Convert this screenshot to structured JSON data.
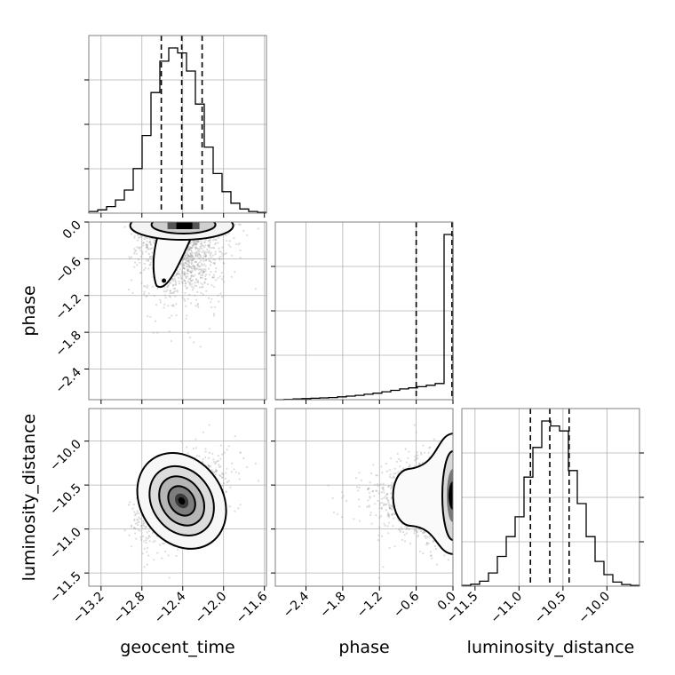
{
  "chart_data": {
    "type": "corner",
    "parameters": [
      "geocent_time",
      "phase",
      "luminosity_distance"
    ],
    "grid": true,
    "ranges": {
      "geocent_time": [
        -13.32,
        -11.58
      ],
      "phase": [
        -2.9,
        0.0
      ],
      "luminosity_distance": [
        -11.65,
        -9.63
      ]
    },
    "ticks": {
      "geocent_time": [
        "-13.2",
        "-12.8",
        "-12.4",
        "-12.0",
        "-11.6"
      ],
      "phase": [
        "-2.4",
        "-1.8",
        "-1.2",
        "-0.6",
        "0.0"
      ],
      "luminosity_distance": [
        "-11.5",
        "-11.0",
        "-10.5",
        "-10.0"
      ]
    },
    "y_ticks": {
      "phase": [
        "0.0",
        "-0.6",
        "-1.2",
        "-1.8",
        "-2.4"
      ],
      "luminosity_distance": [
        "-10.0",
        "-10.5",
        "-11.0",
        "-11.5"
      ]
    },
    "quantiles": {
      "geocent_time": [
        -12.61,
        -12.41,
        -12.21
      ],
      "phase": [
        -0.6,
        0.0,
        0.0
      ],
      "luminosity_distance": [
        -10.87,
        -10.65,
        -10.43
      ]
    },
    "histograms": {
      "geocent_time": {
        "bin_edges": [
          -13.32,
          -13.233,
          -13.146,
          -13.059,
          -12.972,
          -12.885,
          -12.798,
          -12.711,
          -12.624,
          -12.537,
          -12.45,
          -12.363,
          -12.276,
          -12.189,
          -12.102,
          -12.015,
          -11.928,
          -11.841,
          -11.754,
          -11.667,
          -11.58
        ],
        "heights": [
          0.01,
          0.02,
          0.04,
          0.08,
          0.14,
          0.27,
          0.47,
          0.73,
          0.92,
          1.0,
          0.97,
          0.86,
          0.66,
          0.4,
          0.24,
          0.13,
          0.06,
          0.025,
          0.01,
          0.005
        ]
      },
      "phase": {
        "bin_edges": [
          -2.9,
          -2.755,
          -2.61,
          -2.465,
          -2.32,
          -2.175,
          -2.03,
          -1.885,
          -1.74,
          -1.595,
          -1.45,
          -1.305,
          -1.16,
          -1.015,
          -0.87,
          -0.725,
          -0.58,
          -0.435,
          -0.29,
          -0.145,
          0.0
        ],
        "heights": [
          0.0,
          0.002,
          0.004,
          0.006,
          0.008,
          0.01,
          0.012,
          0.016,
          0.02,
          0.024,
          0.03,
          0.036,
          0.044,
          0.052,
          0.06,
          0.066,
          0.072,
          0.08,
          0.09,
          0.92
        ]
      },
      "luminosity_distance": {
        "bin_edges": [
          -11.65,
          -11.549,
          -11.448,
          -11.347,
          -11.246,
          -11.145,
          -11.044,
          -10.943,
          -10.842,
          -10.741,
          -10.64,
          -10.539,
          -10.438,
          -10.337,
          -10.236,
          -10.135,
          -10.034,
          -9.933,
          -9.832,
          -9.731,
          -9.63
        ],
        "heights": [
          0.005,
          0.012,
          0.03,
          0.08,
          0.18,
          0.3,
          0.42,
          0.66,
          0.84,
          1.0,
          0.97,
          0.94,
          0.7,
          0.5,
          0.3,
          0.15,
          0.07,
          0.025,
          0.01,
          0.005
        ]
      }
    },
    "scatter_color": "#9a9a9a",
    "density_color": "#000000",
    "line_color": "#000000",
    "grid_color": "#b0b0b0"
  }
}
